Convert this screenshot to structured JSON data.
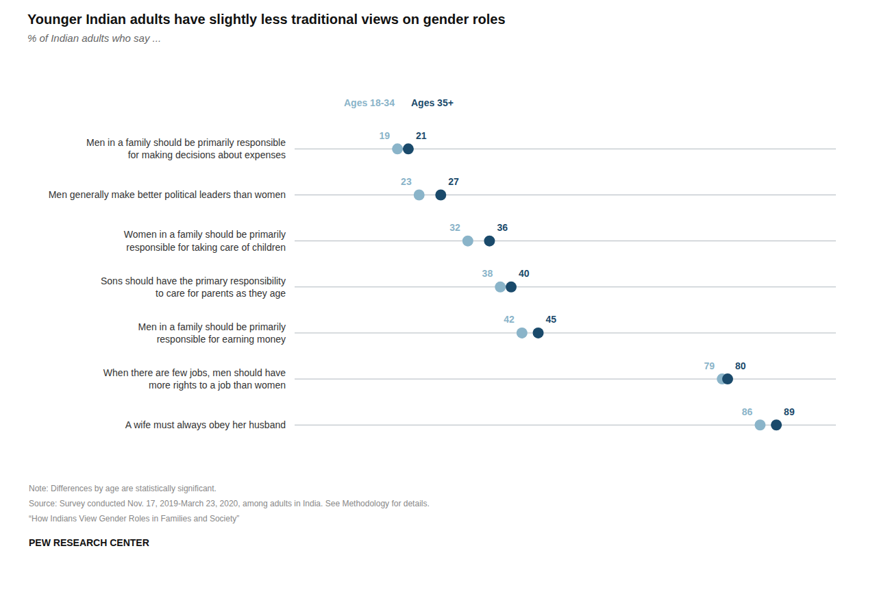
{
  "chart_data": {
    "type": "dot",
    "title": "Younger Indian adults have slightly less traditional views on gender roles",
    "subtitle": "% of Indian adults who say ...",
    "categories": [
      "Men in a family should be primarily responsible\nfor making decisions about expenses",
      "Men generally make better political leaders than women",
      "Women in a family should be primarily\nresponsible for taking care of children",
      "Sons should have the primary responsibility\nto care for parents as they age",
      "Men in a family should be primarily\nresponsible for earning money",
      "When there are few jobs, men should have\nmore rights to a job than women",
      "A wife must always obey her husband"
    ],
    "series": [
      {
        "name": "Ages 18-34",
        "color": "#8ab4c9",
        "values": [
          19,
          23,
          32,
          38,
          42,
          79,
          86
        ]
      },
      {
        "name": "Ages 35+",
        "color": "#1a4a6b",
        "values": [
          21,
          27,
          36,
          40,
          45,
          80,
          89
        ]
      }
    ],
    "xlim": [
      0,
      100
    ],
    "color": "#b0b8bf",
    "data_labels": true,
    "tick_labels": "y",
    "grid": false,
    "annotations": [
      "Note: Differences by age are statistically significant.",
      "Source: Survey conducted Nov. 17, 2019-March 23, 2020, among adults in India. See Methodology for details.",
      "“How Indians View Gender Roles in Families and Society”",
      "PEW RESEARCH CENTER"
    ]
  }
}
